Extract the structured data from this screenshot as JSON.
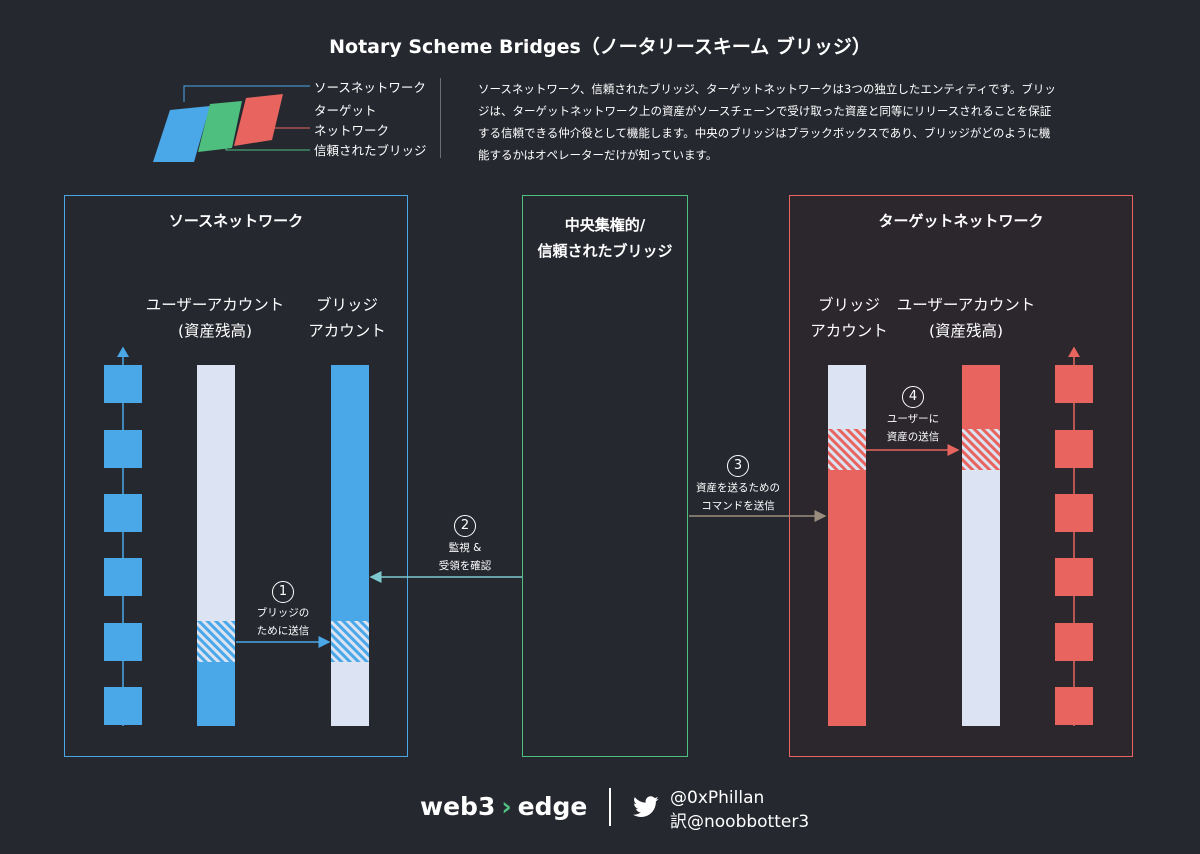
{
  "title": "Notary Scheme Bridges（ノータリースキーム ブリッジ）",
  "legend": {
    "source": "ソースネットワーク",
    "target_line1": "ターゲット",
    "target_line2": "ネットワーク",
    "trusted": "信頼されたブリッジ"
  },
  "description": "ソースネットワーク、信頼されたブリッジ、ターゲットネットワークは3つの独立したエンティティです。ブリッジは、ターゲットネットワーク上の資産がソースチェーンで受け取った資産と同等にリリースされることを保証する信頼できる仲介役として機能します。中央のブリッジはブラックボックスであり、ブリッジがどのように機能するかはオペレーターだけが知っています。",
  "source_box": {
    "title": "ソースネットワーク",
    "user_label_1": "ユーザーアカウント",
    "user_label_2": "(資産残高)",
    "bridge_label_1": "ブリッジ",
    "bridge_label_2": "アカウント"
  },
  "bridge_box": {
    "title_1": "中央集権的/",
    "title_2": "信頼されたブリッジ"
  },
  "target_box": {
    "title": "ターゲットネットワーク",
    "bridge_label_1": "ブリッジ",
    "bridge_label_2": "アカウント",
    "user_label_1": "ユーザーアカウント",
    "user_label_2": "(資産残高)"
  },
  "steps": [
    {
      "num": "1",
      "line1": "ブリッジの",
      "line2": "ために送信"
    },
    {
      "num": "2",
      "line1": "監視 &",
      "line2": "受領を確認"
    },
    {
      "num": "3",
      "line1": "資産を送るための",
      "line2": "コマンドを送信"
    },
    {
      "num": "4",
      "line1": "ユーザーに",
      "line2": "資産の送信"
    }
  ],
  "footer": {
    "logo_left": "web3",
    "logo_arrow": "›",
    "logo_right": "edge",
    "handle_1": "@0xPhillan",
    "handle_2": "訳@noobbotter3"
  },
  "colors": {
    "background": "#262830",
    "source_blue": "#4aa8e8",
    "trusted_green": "#4fbf7f",
    "target_red": "#e8655f",
    "empty_bar": "#dce3f2",
    "step2_arrow": "#7ec8cf",
    "step3_arrow": "#9a8d7e"
  }
}
